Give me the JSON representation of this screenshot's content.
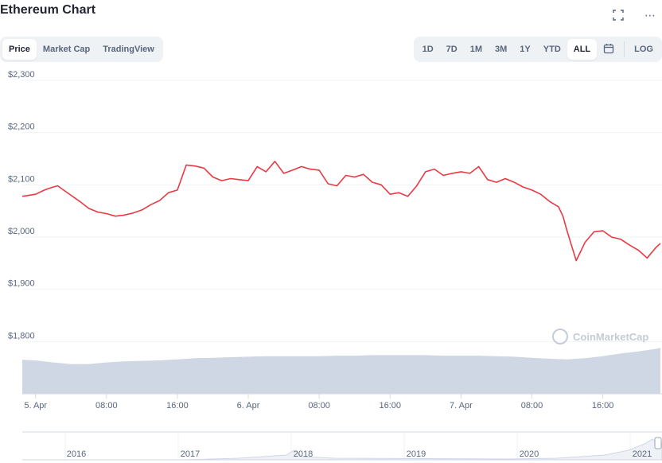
{
  "header": {
    "title": "Ethereum Chart",
    "fullscreen_icon": "fullscreen-icon",
    "more_icon": "more-icon",
    "more_glyph": "⋯"
  },
  "tabs_left": [
    {
      "label": "Price",
      "active": true
    },
    {
      "label": "Market Cap",
      "active": false
    },
    {
      "label": "TradingView",
      "active": false
    }
  ],
  "ranges": [
    {
      "label": "1D",
      "active": false
    },
    {
      "label": "7D",
      "active": false
    },
    {
      "label": "1M",
      "active": false
    },
    {
      "label": "3M",
      "active": false
    },
    {
      "label": "1Y",
      "active": false
    },
    {
      "label": "YTD",
      "active": false
    },
    {
      "label": "ALL",
      "active": true
    }
  ],
  "calendar_icon": "calendar-icon",
  "log_label": "LOG",
  "watermark": "CoinMarketCap",
  "colors": {
    "line": "#ea3943",
    "volume_fill": "#cfd6e4",
    "grid": "#eff2f5",
    "axis_text": "#58667e",
    "navigator_line": "#d6dbe2"
  },
  "chart_data": {
    "type": "line",
    "y_ticks": [
      "$2,300",
      "$2,200",
      "$2,100",
      "$2,000",
      "$1,900",
      "$1,800"
    ],
    "y_tick_values": [
      2300,
      2200,
      2100,
      2000,
      1900,
      1800
    ],
    "ylim": [
      1700,
      2320
    ],
    "x_ticks": [
      "5. Apr",
      "08:00",
      "16:00",
      "6. Apr",
      "08:00",
      "16:00",
      "7. Apr",
      "08:00",
      "16:00"
    ],
    "x_tick_hours": [
      0,
      8,
      16,
      24,
      32,
      40,
      48,
      56,
      64
    ],
    "xlim_hours": [
      -1.5,
      70.5
    ],
    "price_series": {
      "x_hours": [
        -1.5,
        0,
        1,
        2,
        2.5,
        3,
        4,
        5,
        6,
        7,
        8,
        9,
        10,
        11,
        12,
        13,
        14,
        15,
        16,
        17,
        18,
        19,
        20,
        21,
        22,
        23,
        24,
        25,
        26,
        27,
        28,
        29,
        30,
        31,
        32,
        33,
        34,
        35,
        36,
        37,
        38,
        39,
        40,
        41,
        42,
        43,
        44,
        45,
        46,
        47,
        48,
        49,
        50,
        51,
        52,
        53,
        54,
        55,
        56,
        57,
        58,
        59,
        59.5,
        60,
        61,
        62,
        63,
        64,
        65,
        66,
        67,
        68,
        69,
        70,
        70.5
      ],
      "values": [
        2078,
        2082,
        2090,
        2096,
        2098,
        2092,
        2080,
        2068,
        2055,
        2048,
        2045,
        2040,
        2042,
        2046,
        2052,
        2062,
        2070,
        2085,
        2090,
        2138,
        2136,
        2132,
        2115,
        2108,
        2112,
        2110,
        2108,
        2135,
        2125,
        2145,
        2122,
        2128,
        2135,
        2130,
        2128,
        2102,
        2098,
        2118,
        2115,
        2120,
        2105,
        2100,
        2082,
        2085,
        2078,
        2098,
        2125,
        2130,
        2118,
        2122,
        2125,
        2122,
        2135,
        2110,
        2105,
        2112,
        2105,
        2096,
        2090,
        2082,
        2068,
        2058,
        2040,
        2010,
        1955,
        1990,
        2010,
        2012,
        2000,
        1996,
        1985,
        1975,
        1960,
        1980,
        1988
      ]
    },
    "volume_series": {
      "x_hours": [
        -1.5,
        0,
        2,
        4,
        6,
        8,
        10,
        12,
        14,
        16,
        18,
        20,
        22,
        24,
        26,
        28,
        30,
        32,
        34,
        36,
        38,
        40,
        42,
        44,
        46,
        48,
        50,
        52,
        54,
        56,
        58,
        60,
        62,
        64,
        66,
        68,
        70,
        70.5
      ],
      "values": [
        1765,
        1764,
        1760,
        1757,
        1757,
        1760,
        1762,
        1763,
        1764,
        1766,
        1768,
        1769,
        1770,
        1771,
        1772,
        1772,
        1772,
        1772,
        1773,
        1773,
        1774,
        1774,
        1774,
        1774,
        1773,
        1773,
        1773,
        1772,
        1771,
        1769,
        1767,
        1766,
        1768,
        1772,
        1777,
        1781,
        1786,
        1788
      ]
    },
    "navigator": {
      "labels": [
        "2016",
        "2017",
        "2018",
        "2019",
        "2020",
        "2021"
      ]
    }
  }
}
